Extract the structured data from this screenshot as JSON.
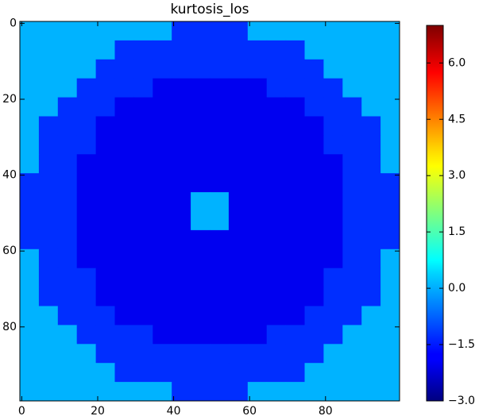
{
  "chart_data": {
    "type": "heatmap",
    "title": "kurtosis_los",
    "colormap": "jet",
    "xlim": [
      -0.5,
      99.5
    ],
    "ylim": [
      99.5,
      -0.5
    ],
    "xticks": [
      0,
      20,
      40,
      60,
      80
    ],
    "yticks": [
      0,
      20,
      40,
      60,
      80
    ],
    "clim": [
      -3,
      7
    ],
    "cticks": [
      {
        "value": -3,
        "label": "−3.0"
      },
      {
        "value": -1.5,
        "label": "−1.5"
      },
      {
        "value": 0,
        "label": "0.0"
      },
      {
        "value": 1.5,
        "label": "1.5"
      },
      {
        "value": 3,
        "label": "3.0"
      },
      {
        "value": 4.5,
        "label": "4.5"
      },
      {
        "value": 6,
        "label": "6.0"
      }
    ],
    "z": [
      [
        0,
        0,
        0,
        0,
        0,
        0,
        0,
        0,
        -1.3,
        -1.3,
        -1.3,
        -1.3,
        0,
        0,
        0,
        0,
        0,
        0,
        0,
        0
      ],
      [
        0,
        0,
        0,
        0,
        0,
        -1.3,
        -1.3,
        -1.3,
        -1.3,
        -1.3,
        -1.3,
        -1.3,
        -1.3,
        -1.3,
        -1.3,
        0,
        0,
        0,
        0,
        0
      ],
      [
        0,
        0,
        0,
        0,
        -1.3,
        -1.3,
        -1.3,
        -1.3,
        -1.3,
        -1.3,
        -1.3,
        -1.3,
        -1.3,
        -1.3,
        -1.3,
        -1.3,
        0,
        0,
        0,
        0
      ],
      [
        0,
        0,
        0,
        -1.3,
        -1.3,
        -1.3,
        -1.3,
        -1.9,
        -1.9,
        -1.9,
        -1.9,
        -1.9,
        -1.9,
        -1.3,
        -1.3,
        -1.3,
        -1.3,
        0,
        0,
        0
      ],
      [
        0,
        0,
        -1.3,
        -1.3,
        -1.3,
        -1.9,
        -1.9,
        -1.9,
        -1.9,
        -1.9,
        -1.9,
        -1.9,
        -1.9,
        -1.9,
        -1.9,
        -1.3,
        -1.3,
        -1.3,
        0,
        0
      ],
      [
        0,
        -1.3,
        -1.3,
        -1.3,
        -1.9,
        -1.9,
        -1.9,
        -1.9,
        -1.9,
        -1.9,
        -1.9,
        -1.9,
        -1.9,
        -1.9,
        -1.9,
        -1.9,
        -1.3,
        -1.3,
        -1.3,
        0
      ],
      [
        0,
        -1.3,
        -1.3,
        -1.3,
        -1.9,
        -1.9,
        -1.9,
        -1.9,
        -1.9,
        -1.9,
        -1.9,
        -1.9,
        -1.9,
        -1.9,
        -1.9,
        -1.9,
        -1.3,
        -1.3,
        -1.3,
        0
      ],
      [
        0,
        -1.3,
        -1.3,
        -1.9,
        -1.9,
        -1.9,
        -1.9,
        -1.9,
        -1.9,
        -1.9,
        -1.9,
        -1.9,
        -1.9,
        -1.9,
        -1.9,
        -1.9,
        -1.9,
        -1.3,
        -1.3,
        0
      ],
      [
        -1.3,
        -1.3,
        -1.3,
        -1.9,
        -1.9,
        -1.9,
        -1.9,
        -1.9,
        -1.9,
        -1.9,
        -1.9,
        -1.9,
        -1.9,
        -1.9,
        -1.9,
        -1.9,
        -1.9,
        -1.3,
        -1.3,
        -1.3
      ],
      [
        -1.3,
        -1.3,
        -1.3,
        -1.9,
        -1.9,
        -1.9,
        -1.9,
        -1.9,
        -1.9,
        0,
        0,
        -1.9,
        -1.9,
        -1.9,
        -1.9,
        -1.9,
        -1.9,
        -1.3,
        -1.3,
        -1.3
      ],
      [
        -1.3,
        -1.3,
        -1.3,
        -1.9,
        -1.9,
        -1.9,
        -1.9,
        -1.9,
        -1.9,
        0,
        0,
        -1.9,
        -1.9,
        -1.9,
        -1.9,
        -1.9,
        -1.9,
        -1.3,
        -1.3,
        -1.3
      ],
      [
        -1.3,
        -1.3,
        -1.3,
        -1.9,
        -1.9,
        -1.9,
        -1.9,
        -1.9,
        -1.9,
        -1.9,
        -1.9,
        -1.9,
        -1.9,
        -1.9,
        -1.9,
        -1.9,
        -1.9,
        -1.3,
        -1.3,
        -1.3
      ],
      [
        0,
        -1.3,
        -1.3,
        -1.9,
        -1.9,
        -1.9,
        -1.9,
        -1.9,
        -1.9,
        -1.9,
        -1.9,
        -1.9,
        -1.9,
        -1.9,
        -1.9,
        -1.9,
        -1.9,
        -1.3,
        -1.3,
        0
      ],
      [
        0,
        -1.3,
        -1.3,
        -1.3,
        -1.9,
        -1.9,
        -1.9,
        -1.9,
        -1.9,
        -1.9,
        -1.9,
        -1.9,
        -1.9,
        -1.9,
        -1.9,
        -1.9,
        -1.3,
        -1.3,
        -1.3,
        0
      ],
      [
        0,
        -1.3,
        -1.3,
        -1.3,
        -1.9,
        -1.9,
        -1.9,
        -1.9,
        -1.9,
        -1.9,
        -1.9,
        -1.9,
        -1.9,
        -1.9,
        -1.9,
        -1.9,
        -1.3,
        -1.3,
        -1.3,
        0
      ],
      [
        0,
        0,
        -1.3,
        -1.3,
        -1.3,
        -1.9,
        -1.9,
        -1.9,
        -1.9,
        -1.9,
        -1.9,
        -1.9,
        -1.9,
        -1.9,
        -1.9,
        -1.3,
        -1.3,
        -1.3,
        0,
        0
      ],
      [
        0,
        0,
        0,
        -1.3,
        -1.3,
        -1.3,
        -1.3,
        -1.9,
        -1.9,
        -1.9,
        -1.9,
        -1.9,
        -1.9,
        -1.3,
        -1.3,
        -1.3,
        -1.3,
        0,
        0,
        0
      ],
      [
        0,
        0,
        0,
        0,
        -1.3,
        -1.3,
        -1.3,
        -1.3,
        -1.3,
        -1.3,
        -1.3,
        -1.3,
        -1.3,
        -1.3,
        -1.3,
        -1.3,
        0,
        0,
        0,
        0
      ],
      [
        0,
        0,
        0,
        0,
        0,
        -1.3,
        -1.3,
        -1.3,
        -1.3,
        -1.3,
        -1.3,
        -1.3,
        -1.3,
        -1.3,
        -1.3,
        0,
        0,
        0,
        0,
        0
      ],
      [
        0,
        0,
        0,
        0,
        0,
        0,
        0,
        0,
        -1.3,
        -1.3,
        -1.3,
        -1.3,
        0,
        0,
        0,
        0,
        0,
        0,
        0,
        0
      ]
    ]
  }
}
